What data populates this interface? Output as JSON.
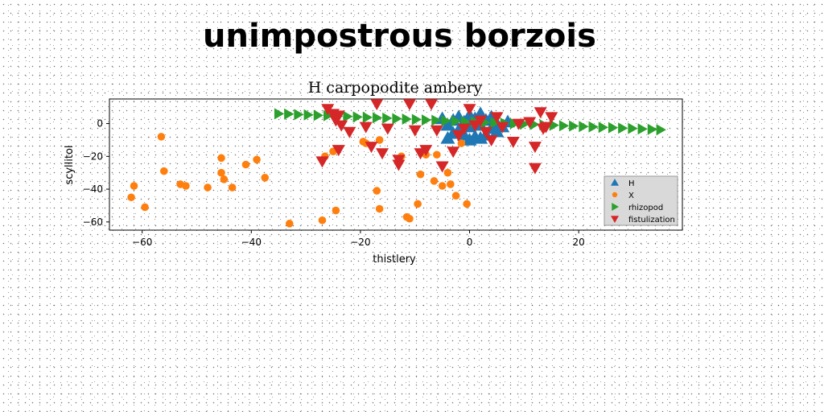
{
  "page_title": "unimpostrous borzois",
  "colors": {
    "H": "#1f77b4",
    "X": "#ff7f0e",
    "rhizopod": "#2ca02c",
    "fistulization": "#d62728"
  },
  "chart_data": {
    "type": "scatter",
    "title": "H carpopodite ambery",
    "xlabel": "thistlery",
    "ylabel": "scyllitol",
    "xlim": [
      -66,
      39
    ],
    "ylim": [
      -65,
      15
    ],
    "xticks": [
      -60,
      -40,
      -20,
      0,
      20
    ],
    "yticks": [
      0,
      -20,
      -40,
      -60
    ],
    "grid": false,
    "legend_position": "lower-right",
    "series": [
      {
        "name": "H",
        "marker": "triangle-up",
        "points": [
          [
            -5,
            3
          ],
          [
            -4,
            -1
          ],
          [
            -3,
            2
          ],
          [
            -2,
            -4
          ],
          [
            -1,
            1
          ],
          [
            0,
            -2
          ],
          [
            1,
            3
          ],
          [
            2,
            -1
          ],
          [
            3,
            2
          ],
          [
            4,
            -3
          ],
          [
            5,
            0
          ],
          [
            6,
            -2
          ],
          [
            7,
            1
          ],
          [
            -3,
            -6
          ],
          [
            -1,
            -7
          ],
          [
            1,
            -8
          ],
          [
            3,
            -7
          ],
          [
            5,
            -5
          ],
          [
            -2,
            4
          ],
          [
            0,
            5
          ],
          [
            2,
            6
          ],
          [
            4,
            4
          ],
          [
            -4,
            -9
          ],
          [
            0,
            -10
          ],
          [
            2,
            -9
          ]
        ]
      },
      {
        "name": "X",
        "points": [
          [
            -62,
            -45
          ],
          [
            -61.5,
            -38
          ],
          [
            -59.5,
            -51
          ],
          [
            -56.5,
            -8
          ],
          [
            -56,
            -29
          ],
          [
            -53,
            -37
          ],
          [
            -52,
            -38
          ],
          [
            -48,
            -39
          ],
          [
            -45.5,
            -21
          ],
          [
            -45.5,
            -30
          ],
          [
            -45,
            -34
          ],
          [
            -43.5,
            -39
          ],
          [
            -41,
            -25
          ],
          [
            -39,
            -22
          ],
          [
            -37.5,
            -33
          ],
          [
            -33,
            -61
          ],
          [
            -27,
            -59
          ],
          [
            -26.5,
            -20
          ],
          [
            -25,
            -17
          ],
          [
            -24.5,
            -53
          ],
          [
            -19.5,
            -11
          ],
          [
            -19,
            -12
          ],
          [
            -17,
            -41
          ],
          [
            -16.5,
            -10
          ],
          [
            -16.5,
            -52
          ],
          [
            -12.5,
            -20
          ],
          [
            -11.5,
            -57
          ],
          [
            -11,
            -58
          ],
          [
            -9.5,
            -49
          ],
          [
            -9,
            -31
          ],
          [
            -8,
            -19
          ],
          [
            -6.5,
            -35
          ],
          [
            -6,
            -19
          ],
          [
            -5,
            -38
          ],
          [
            -4,
            -30
          ],
          [
            -3.5,
            -37
          ],
          [
            -2.5,
            -44
          ],
          [
            -1.5,
            -12
          ],
          [
            -0.5,
            -49
          ]
        ]
      },
      {
        "name": "rhizopod",
        "marker": "triangle-right",
        "points": [
          [
            -35,
            6
          ],
          [
            -33.2,
            5.8
          ],
          [
            -31.4,
            5.5
          ],
          [
            -29.6,
            5.3
          ],
          [
            -27.8,
            5
          ],
          [
            -26,
            4.8
          ],
          [
            -24.2,
            4.5
          ],
          [
            -22.4,
            4.3
          ],
          [
            -20.6,
            4
          ],
          [
            -18.8,
            3.8
          ],
          [
            -17,
            3.5
          ],
          [
            -15.2,
            3.3
          ],
          [
            -13.4,
            3
          ],
          [
            -11.6,
            2.7
          ],
          [
            -9.8,
            2.5
          ],
          [
            -8,
            2.2
          ],
          [
            -6.2,
            2
          ],
          [
            -4.4,
            1.7
          ],
          [
            -2.6,
            1.5
          ],
          [
            -0.8,
            1.2
          ],
          [
            1,
            1
          ],
          [
            2.8,
            0.7
          ],
          [
            4.6,
            0.5
          ],
          [
            6.4,
            0.2
          ],
          [
            8.2,
            0
          ],
          [
            10,
            -0.3
          ],
          [
            11.8,
            -0.5
          ],
          [
            13.6,
            -0.8
          ],
          [
            15.4,
            -1
          ],
          [
            17.2,
            -1.3
          ],
          [
            19,
            -1.5
          ],
          [
            20.8,
            -1.8
          ],
          [
            22.6,
            -2
          ],
          [
            24.4,
            -2.3
          ],
          [
            26.2,
            -2.5
          ],
          [
            28,
            -2.8
          ],
          [
            29.8,
            -3
          ],
          [
            31.6,
            -3.3
          ],
          [
            33.4,
            -3.5
          ],
          [
            35,
            -3.8
          ]
        ]
      },
      {
        "name": "fistulization",
        "marker": "triangle-down",
        "points": [
          [
            -26,
            9
          ],
          [
            -25,
            6
          ],
          [
            -24.5,
            2
          ],
          [
            -24,
            5
          ],
          [
            -23.5,
            -1
          ],
          [
            -22,
            -5
          ],
          [
            -27,
            -23
          ],
          [
            -24,
            -16
          ],
          [
            -19,
            -2
          ],
          [
            -18,
            -14
          ],
          [
            -17,
            12
          ],
          [
            -16,
            -18
          ],
          [
            -15,
            -3
          ],
          [
            -13,
            -25
          ],
          [
            -13,
            -22
          ],
          [
            -11,
            12
          ],
          [
            -10,
            -4
          ],
          [
            -9,
            -18
          ],
          [
            -8,
            -16
          ],
          [
            -7,
            12
          ],
          [
            -6,
            -4
          ],
          [
            -5,
            -26
          ],
          [
            -3,
            -17
          ],
          [
            -2,
            -7
          ],
          [
            -1,
            -3
          ],
          [
            0,
            9
          ],
          [
            1,
            -1
          ],
          [
            2,
            2
          ],
          [
            3,
            -5
          ],
          [
            4,
            -10
          ],
          [
            5,
            4
          ],
          [
            6,
            -2
          ],
          [
            8,
            -11
          ],
          [
            9,
            0
          ],
          [
            11,
            1
          ],
          [
            12,
            -14
          ],
          [
            12,
            -27
          ],
          [
            13,
            7
          ],
          [
            13.5,
            -3
          ],
          [
            14,
            -2
          ],
          [
            15,
            4
          ]
        ]
      }
    ]
  }
}
